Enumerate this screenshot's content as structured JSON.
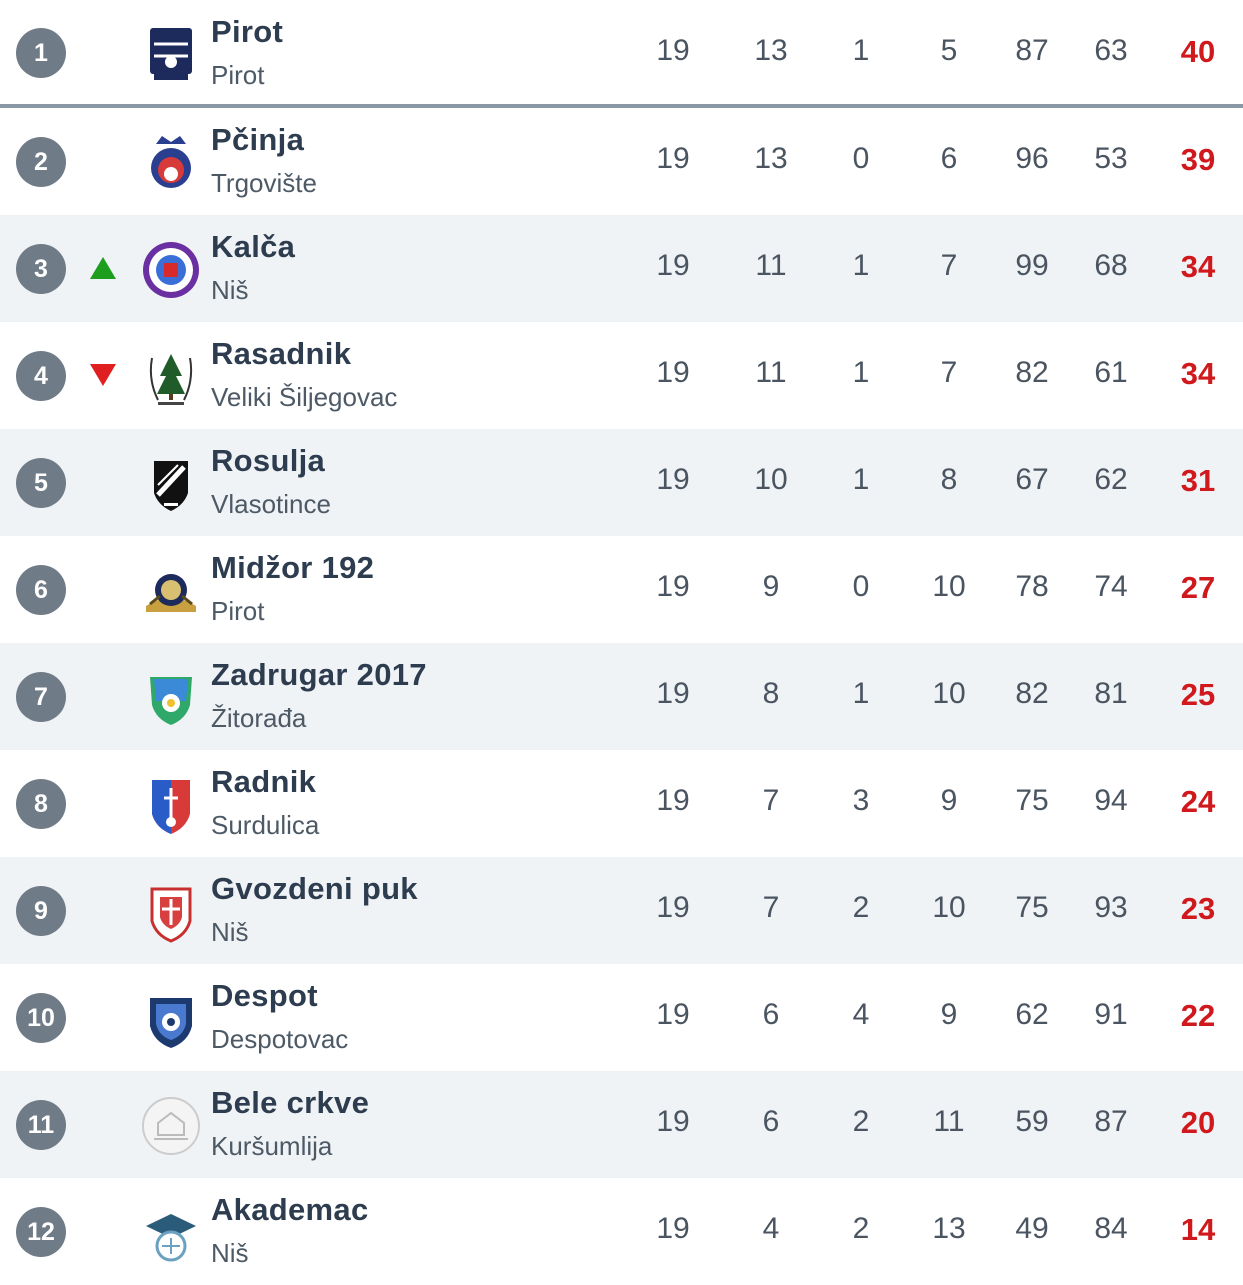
{
  "colors": {
    "rank_badge": "#6f7b86",
    "points": "#d0191c",
    "trend_up": "#1e9e1e",
    "trend_down": "#e02020",
    "shaded_row": "#f0f3f6"
  },
  "rows": [
    {
      "rank": "1",
      "team": "Pirot",
      "city": "Pirot",
      "played": "19",
      "won": "13",
      "drawn": "1",
      "lost": "5",
      "goals_for": "87",
      "goals_against": "63",
      "points": "40",
      "trend": "",
      "logo_icon": "pirot-crest-icon"
    },
    {
      "rank": "2",
      "team": "Pčinja",
      "city": "Trgovište",
      "played": "19",
      "won": "13",
      "drawn": "0",
      "lost": "6",
      "goals_for": "96",
      "goals_against": "53",
      "points": "39",
      "trend": "",
      "logo_icon": "pcinja-crest-icon"
    },
    {
      "rank": "3",
      "team": "Kalča",
      "city": "Niš",
      "played": "19",
      "won": "11",
      "drawn": "1",
      "lost": "7",
      "goals_for": "99",
      "goals_against": "68",
      "points": "34",
      "trend": "up",
      "logo_icon": "kalca-crest-icon"
    },
    {
      "rank": "4",
      "team": "Rasadnik",
      "city": "Veliki Šiljegovac",
      "played": "19",
      "won": "11",
      "drawn": "1",
      "lost": "7",
      "goals_for": "82",
      "goals_against": "61",
      "points": "34",
      "trend": "down",
      "logo_icon": "rasadnik-crest-icon"
    },
    {
      "rank": "5",
      "team": "Rosulja",
      "city": "Vlasotince",
      "played": "19",
      "won": "10",
      "drawn": "1",
      "lost": "8",
      "goals_for": "67",
      "goals_against": "62",
      "points": "31",
      "trend": "",
      "logo_icon": "rosulja-crest-icon"
    },
    {
      "rank": "6",
      "team": "Midžor 192",
      "city": "Pirot",
      "played": "19",
      "won": "9",
      "drawn": "0",
      "lost": "10",
      "goals_for": "78",
      "goals_against": "74",
      "points": "27",
      "trend": "",
      "logo_icon": "midzor-crest-icon"
    },
    {
      "rank": "7",
      "team": "Zadrugar 2017",
      "city": "Žitorađa",
      "played": "19",
      "won": "8",
      "drawn": "1",
      "lost": "10",
      "goals_for": "82",
      "goals_against": "81",
      "points": "25",
      "trend": "",
      "logo_icon": "zadrugar-crest-icon"
    },
    {
      "rank": "8",
      "team": "Radnik",
      "city": "Surdulica",
      "played": "19",
      "won": "7",
      "drawn": "3",
      "lost": "9",
      "goals_for": "75",
      "goals_against": "94",
      "points": "24",
      "trend": "",
      "logo_icon": "radnik-crest-icon"
    },
    {
      "rank": "9",
      "team": "Gvozdeni puk",
      "city": "Niš",
      "played": "19",
      "won": "7",
      "drawn": "2",
      "lost": "10",
      "goals_for": "75",
      "goals_against": "93",
      "points": "23",
      "trend": "",
      "logo_icon": "gvozdeni-puk-crest-icon"
    },
    {
      "rank": "10",
      "team": "Despot",
      "city": "Despotovac",
      "played": "19",
      "won": "6",
      "drawn": "4",
      "lost": "9",
      "goals_for": "62",
      "goals_against": "91",
      "points": "22",
      "trend": "",
      "logo_icon": "despot-crest-icon"
    },
    {
      "rank": "11",
      "team": "Bele crkve",
      "city": "Kuršumlija",
      "played": "19",
      "won": "6",
      "drawn": "2",
      "lost": "11",
      "goals_for": "59",
      "goals_against": "87",
      "points": "20",
      "trend": "",
      "logo_icon": "bele-crkve-crest-icon"
    },
    {
      "rank": "12",
      "team": "Akademac",
      "city": "Niš",
      "played": "19",
      "won": "4",
      "drawn": "2",
      "lost": "13",
      "goals_for": "49",
      "goals_against": "84",
      "points": "14",
      "trend": "",
      "logo_icon": "akademac-crest-icon"
    }
  ]
}
